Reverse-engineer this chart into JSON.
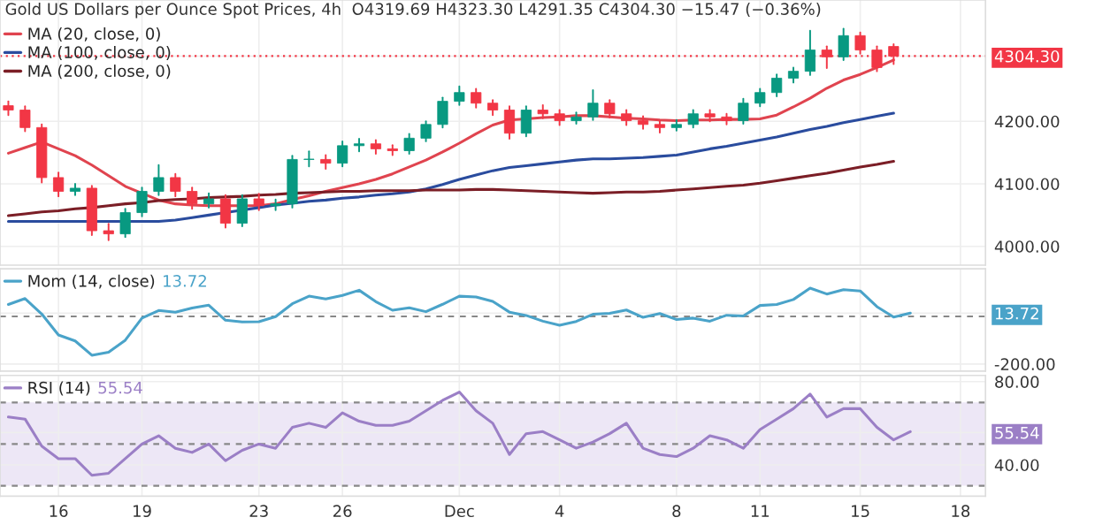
{
  "chart_data": [
    {
      "type": "candlestick",
      "title": "Gold US Dollars per Ounce Spot Prices, 4h  O4319.69 H4323.30 L4291.35 C4304.30 −15.47 (−0.36%)",
      "categories": [
        null,
        null,
        null,
        null,
        null,
        null,
        null,
        null,
        null,
        null,
        null,
        null,
        null,
        null,
        null,
        null,
        null,
        null,
        null,
        null,
        null,
        null,
        null,
        null,
        null,
        null,
        null,
        null,
        null,
        null,
        null,
        null,
        null,
        null,
        null,
        null,
        null,
        null,
        null,
        null,
        null,
        null,
        null,
        null,
        null,
        null,
        null,
        null,
        null,
        null,
        null,
        null,
        null,
        null,
        null,
        null,
        null,
        null,
        null
      ],
      "ohlc": [
        [
          4225,
          4232,
          4210,
          4218
        ],
        [
          4218,
          4224,
          4184,
          4190
        ],
        [
          4190,
          4195,
          4102,
          4110
        ],
        [
          4110,
          4118,
          4080,
          4088
        ],
        [
          4088,
          4100,
          4082,
          4093
        ],
        [
          4093,
          4097,
          4018,
          4025
        ],
        [
          4025,
          4036,
          4010,
          4020
        ],
        [
          4020,
          4060,
          4015,
          4054
        ],
        [
          4054,
          4094,
          4048,
          4088
        ],
        [
          4088,
          4130,
          4082,
          4110
        ],
        [
          4110,
          4116,
          4080,
          4088
        ],
        [
          4088,
          4094,
          4060,
          4068
        ],
        [
          4068,
          4085,
          4062,
          4076
        ],
        [
          4076,
          4082,
          4030,
          4037
        ],
        [
          4037,
          4082,
          4032,
          4076
        ],
        [
          4076,
          4084,
          4058,
          4065
        ],
        [
          4065,
          4075,
          4058,
          4068
        ],
        [
          4068,
          4145,
          4062,
          4139
        ],
        [
          4139,
          4152,
          4128,
          4139
        ],
        [
          4139,
          4146,
          4124,
          4133
        ],
        [
          4133,
          4168,
          4128,
          4161
        ],
        [
          4161,
          4172,
          4152,
          4164
        ],
        [
          4164,
          4170,
          4148,
          4156
        ],
        [
          4156,
          4162,
          4146,
          4153
        ],
        [
          4153,
          4180,
          4148,
          4173
        ],
        [
          4173,
          4200,
          4168,
          4195
        ],
        [
          4195,
          4238,
          4190,
          4232
        ],
        [
          4232,
          4256,
          4226,
          4246
        ],
        [
          4246,
          4252,
          4222,
          4229
        ],
        [
          4229,
          4234,
          4210,
          4218
        ],
        [
          4218,
          4224,
          4172,
          4181
        ],
        [
          4181,
          4224,
          4176,
          4218
        ],
        [
          4218,
          4226,
          4205,
          4212
        ],
        [
          4212,
          4218,
          4194,
          4201
        ],
        [
          4201,
          4214,
          4196,
          4207
        ],
        [
          4207,
          4250,
          4202,
          4229
        ],
        [
          4229,
          4234,
          4206,
          4212
        ],
        [
          4212,
          4218,
          4194,
          4201
        ],
        [
          4201,
          4208,
          4188,
          4195
        ],
        [
          4195,
          4200,
          4182,
          4190
        ],
        [
          4190,
          4202,
          4185,
          4195
        ],
        [
          4195,
          4218,
          4190,
          4212
        ],
        [
          4212,
          4218,
          4200,
          4207
        ],
        [
          4207,
          4212,
          4195,
          4201
        ],
        [
          4201,
          4236,
          4196,
          4229
        ],
        [
          4229,
          4252,
          4224,
          4246
        ],
        [
          4246,
          4275,
          4240,
          4269
        ],
        [
          4269,
          4286,
          4262,
          4280
        ],
        [
          4280,
          4345,
          4274,
          4314
        ],
        [
          4314,
          4320,
          4285,
          4303
        ],
        [
          4303,
          4348,
          4298,
          4337
        ],
        [
          4337,
          4342,
          4308,
          4314
        ],
        [
          4314,
          4320,
          4280,
          4286
        ],
        [
          4319.69,
          4323.3,
          4291.35,
          4304.3
        ],
        null,
        null,
        null,
        null,
        null
      ],
      "series": [
        {
          "type": "line",
          "name": "MA (20, close, 0)",
          "color": "#e0444f",
          "values": [
            4149,
            4158,
            4167,
            4156,
            4145,
            4130,
            4113,
            4096,
            4085,
            4074,
            4068,
            4066,
            4065,
            4065,
            4065,
            4065,
            4068,
            4075,
            4081,
            4088,
            4094,
            4100,
            4107,
            4116,
            4127,
            4138,
            4151,
            4165,
            4180,
            4194,
            4202,
            4204,
            4206,
            4207,
            4209,
            4209,
            4207,
            4205,
            4204,
            4202,
            4201,
            4202,
            4202,
            4203,
            4203,
            4204,
            4210,
            4223,
            4237,
            4253,
            4266,
            4275,
            4286,
            4298,
            null,
            null,
            null,
            null,
            null
          ]
        },
        {
          "type": "line",
          "name": "MA (100, close, 0)",
          "color": "#2a4c9e",
          "values": [
            4040,
            4040,
            4040,
            4040,
            4040,
            4040,
            4040,
            4040,
            4040,
            4040,
            4042,
            4046,
            4050,
            4054,
            4058,
            4062,
            4066,
            4069,
            4072,
            4074,
            4077,
            4079,
            4082,
            4084,
            4087,
            4092,
            4099,
            4107,
            4114,
            4121,
            4126,
            4129,
            4132,
            4135,
            4138,
            4140,
            4140,
            4141,
            4142,
            4144,
            4146,
            4151,
            4156,
            4160,
            4165,
            4170,
            4175,
            4181,
            4187,
            4192,
            4198,
            4203,
            4208,
            4213,
            null,
            null,
            null,
            null,
            null
          ]
        },
        {
          "type": "line",
          "name": "MA (200, close, 0)",
          "color": "#7b1e26",
          "values": [
            4049,
            4052,
            4055,
            4057,
            4060,
            4062,
            4065,
            4068,
            4070,
            4073,
            4075,
            4076,
            4078,
            4079,
            4080,
            4082,
            4083,
            4085,
            4086,
            4087,
            4088,
            4088,
            4089,
            4089,
            4089,
            4090,
            4090,
            4090,
            4091,
            4091,
            4090,
            4089,
            4088,
            4087,
            4086,
            4085,
            4086,
            4087,
            4087,
            4088,
            4090,
            4092,
            4094,
            4096,
            4098,
            4101,
            4105,
            4109,
            4113,
            4117,
            4122,
            4127,
            4131,
            4136,
            null,
            null,
            null,
            null,
            null
          ]
        }
      ],
      "ylim": [
        3970,
        4394
      ],
      "yticks": [
        {
          "value": 4000,
          "label": "4000.00"
        },
        {
          "value": 4100,
          "label": "4100.00"
        },
        {
          "value": 4200,
          "label": "4200.00"
        },
        {
          "value": 4304.3,
          "label": "4304.30"
        }
      ],
      "ref_lines": [
        {
          "axis": "y",
          "value": 4304.3,
          "color": "#f23645",
          "line_style": "dotted"
        }
      ],
      "grid": true,
      "legend": "top left",
      "tick_labels": "y"
    },
    {
      "type": "line",
      "categories": [
        null,
        null,
        null,
        null,
        null,
        null,
        null,
        null,
        null,
        null,
        null,
        null,
        null,
        null,
        null,
        null,
        null,
        null,
        null,
        null,
        null,
        null,
        null,
        null,
        null,
        null,
        null,
        null,
        null,
        null,
        null,
        null,
        null,
        null,
        null,
        null,
        null,
        null,
        null,
        null,
        null,
        null,
        null,
        null,
        null,
        null,
        null,
        null,
        null,
        null,
        null,
        null,
        null,
        null,
        null,
        null,
        null,
        null,
        null
      ],
      "series": [
        {
          "name": "Mom (14, close)",
          "color": "#4aa3c9",
          "values": [
            50,
            75,
            10,
            -78,
            -103,
            -163,
            -150,
            -100,
            -7,
            25,
            18,
            35,
            47,
            -16,
            -23,
            -22,
            -1,
            53,
            85,
            73,
            88,
            110,
            62,
            26,
            36,
            20,
            51,
            85,
            82,
            63,
            18,
            4,
            -20,
            -37,
            -21,
            9,
            13,
            27,
            -4,
            12,
            -13,
            -7,
            -20,
            5,
            2,
            46,
            50,
            71,
            119,
            94,
            112,
            107,
            41,
            -3,
            14,
            null,
            null,
            null,
            null
          ]
        }
      ],
      "annotations": [
        "13.72"
      ],
      "ylim": [
        -230,
        200
      ],
      "yticks": [
        {
          "value": -200,
          "label": "-200.00"
        },
        {
          "value": 13.72,
          "label": "13.72"
        }
      ],
      "ref_lines": [
        {
          "axis": "y",
          "value": 0,
          "color": "#888888",
          "line_style": "dashed"
        }
      ],
      "grid": true,
      "legend": "top left",
      "tick_labels": "y"
    },
    {
      "type": "line",
      "categories": [
        null,
        null,
        null,
        "16",
        null,
        null,
        null,
        null,
        "19",
        null,
        null,
        null,
        null,
        null,
        null,
        "23",
        null,
        null,
        null,
        null,
        "26",
        null,
        null,
        null,
        null,
        null,
        null,
        "Dec",
        null,
        null,
        null,
        null,
        null,
        "4",
        null,
        null,
        null,
        null,
        null,
        null,
        "8",
        null,
        null,
        null,
        null,
        "11",
        null,
        null,
        null,
        null,
        null,
        "15",
        null,
        null,
        null,
        null,
        null,
        "18",
        null
      ],
      "series": [
        {
          "name": "RSI (14)",
          "color": "#9b7fc6",
          "values": [
            63,
            62,
            49,
            43,
            43,
            35,
            36,
            43,
            50,
            54,
            48,
            46,
            50,
            42,
            47,
            50,
            48,
            58,
            60,
            58,
            65,
            61,
            59,
            59,
            61,
            66,
            71,
            75,
            66,
            60,
            45,
            55,
            56,
            52,
            48,
            51,
            55,
            60,
            48,
            45,
            44,
            48,
            54,
            52,
            48,
            57,
            62,
            67,
            74,
            63,
            67,
            67,
            58,
            52,
            56,
            null,
            null,
            null,
            null
          ]
        }
      ],
      "annotations": [
        "55.54"
      ],
      "ylim": [
        25,
        83
      ],
      "yticks": [
        {
          "value": 40,
          "label": "40.00"
        },
        {
          "value": 55.54,
          "label": "55.54"
        },
        {
          "value": 80,
          "label": "80.00"
        }
      ],
      "ref_lines": [
        {
          "axis": "y",
          "value": 70,
          "color": "#888888",
          "line_style": "dashed"
        },
        {
          "axis": "y",
          "value": 50,
          "color": "#888888",
          "line_style": "dashed"
        },
        {
          "axis": "y",
          "value": 30,
          "color": "#888888",
          "line_style": "dashed"
        }
      ],
      "bands": [
        {
          "axis": "y",
          "from": 30,
          "to": 70,
          "color": "#ede7f6"
        }
      ],
      "grid": true,
      "legend": "top left"
    }
  ]
}
